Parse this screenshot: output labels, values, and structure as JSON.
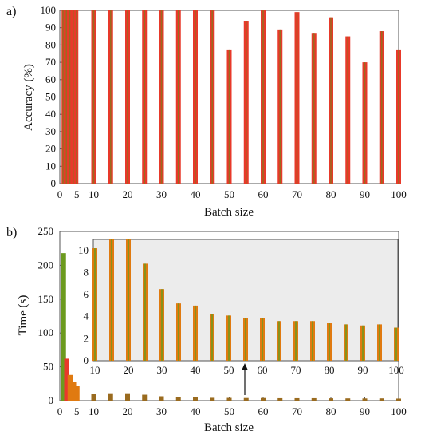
{
  "colors": {
    "red": "#e8392a",
    "olive": "#9a6b1f",
    "orange": "#e07a10",
    "green": "#6c9a1e",
    "inset_bg": "#ececec",
    "axis": "#555555"
  },
  "chart_data": [
    {
      "type": "bar",
      "panel_label": "a)",
      "xlabel": "Batch size",
      "ylabel": "Accuracy (%)",
      "xlim": [
        0,
        100
      ],
      "ylim": [
        0,
        100
      ],
      "xticks": [
        0,
        5,
        10,
        20,
        30,
        40,
        50,
        60,
        70,
        80,
        90,
        100
      ],
      "yticks": [
        0,
        10,
        20,
        30,
        40,
        50,
        60,
        70,
        80,
        90,
        100
      ],
      "dense_region": {
        "x_from": 1,
        "x_to": 5,
        "value": 100
      },
      "x": [
        10,
        15,
        20,
        25,
        30,
        35,
        40,
        45,
        50,
        55,
        60,
        65,
        70,
        75,
        80,
        85,
        90,
        95,
        100
      ],
      "values": [
        100,
        100,
        100,
        100,
        100,
        100,
        100,
        100,
        77,
        94,
        100,
        89,
        99,
        87,
        96,
        85,
        70,
        88,
        77
      ]
    },
    {
      "type": "bar",
      "panel_label": "b)",
      "xlabel": "Batch size",
      "ylabel": "Time (s)",
      "xlim": [
        0,
        100
      ],
      "ylim": [
        0,
        250
      ],
      "xticks": [
        0,
        5,
        10,
        20,
        30,
        40,
        50,
        60,
        70,
        80,
        90,
        100
      ],
      "yticks": [
        0,
        50,
        100,
        150,
        200,
        250
      ],
      "small_batches": {
        "x": [
          1,
          2,
          3,
          4,
          5
        ],
        "values": [
          218,
          62,
          38,
          28,
          22
        ]
      },
      "x": [
        10,
        15,
        20,
        25,
        30,
        35,
        40,
        45,
        50,
        55,
        60,
        65,
        70,
        75,
        80,
        85,
        90,
        95,
        100
      ],
      "values": [
        10.2,
        11.0,
        11.0,
        8.8,
        6.5,
        5.2,
        5.0,
        4.2,
        4.1,
        3.9,
        3.9,
        3.6,
        3.6,
        3.6,
        3.4,
        3.3,
        3.2,
        3.3,
        3.0
      ],
      "inset": {
        "xlim": [
          10,
          100
        ],
        "ylim": [
          0,
          11
        ],
        "xticks": [
          10,
          20,
          30,
          40,
          50,
          60,
          70,
          80,
          90,
          100
        ],
        "yticks": [
          0,
          2,
          4,
          6,
          8,
          10
        ]
      }
    }
  ]
}
